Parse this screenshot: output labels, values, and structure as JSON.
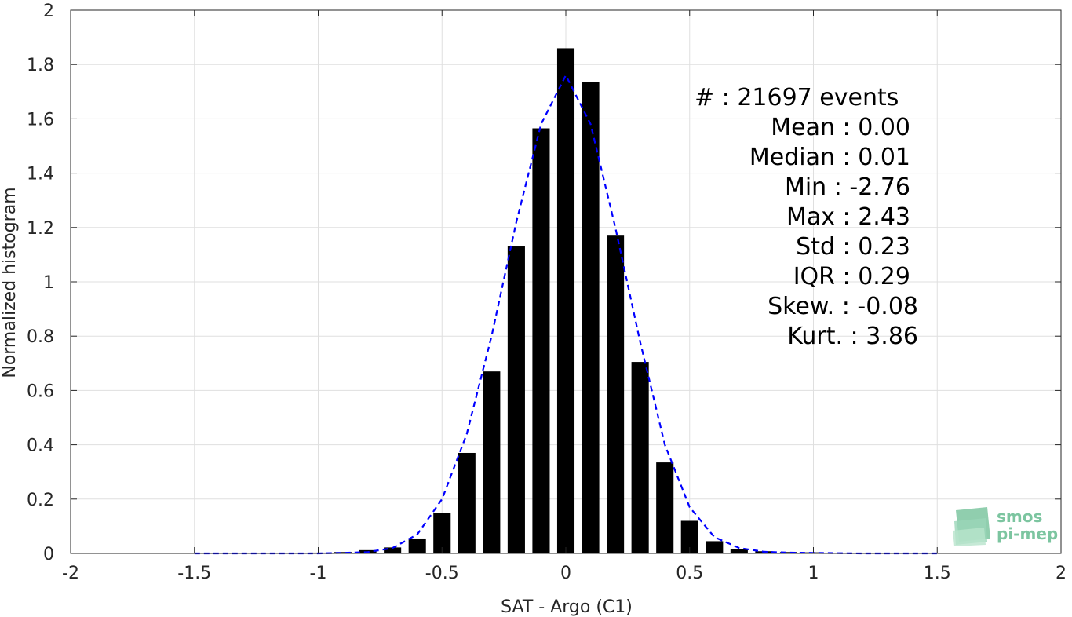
{
  "chart_data": {
    "type": "bar",
    "xlabel": "SAT - Argo (C1)",
    "ylabel": "Normalized histogram",
    "xlim": [
      -2,
      2
    ],
    "ylim": [
      0,
      2
    ],
    "x_ticks": [
      -2,
      -1.5,
      -1,
      -0.5,
      0,
      0.5,
      1,
      1.5,
      2
    ],
    "x_tick_labels": [
      "-2",
      "-1.5",
      "-1",
      "-0.5",
      "0",
      "0.5",
      "1",
      "1.5",
      "2"
    ],
    "y_ticks": [
      0,
      0.2,
      0.4,
      0.6,
      0.8,
      1,
      1.2,
      1.4,
      1.6,
      1.8,
      2
    ],
    "y_tick_labels": [
      "0",
      "0.2",
      "0.4",
      "0.6",
      "0.8",
      "1",
      "1.2",
      "1.4",
      "1.6",
      "1.8",
      "2"
    ],
    "grid": true,
    "bar_color": "#000000",
    "fit_color": "#0000ff",
    "bin_width": 0.1,
    "bars": {
      "x": [
        -1.5,
        -1.4,
        -1.3,
        -1.2,
        -1.1,
        -1.0,
        -0.9,
        -0.8,
        -0.7,
        -0.6,
        -0.5,
        -0.4,
        -0.3,
        -0.2,
        -0.1,
        0.0,
        0.1,
        0.2,
        0.3,
        0.4,
        0.5,
        0.6,
        0.7,
        0.8,
        0.9,
        1.0,
        1.1,
        1.2,
        1.3,
        1.4,
        1.5
      ],
      "values": [
        0.001,
        0.001,
        0.001,
        0.001,
        0.002,
        0.003,
        0.005,
        0.012,
        0.022,
        0.055,
        0.15,
        0.37,
        0.67,
        1.13,
        1.565,
        1.86,
        1.735,
        1.17,
        0.705,
        0.335,
        0.12,
        0.045,
        0.015,
        0.008,
        0.005,
        0.004,
        0.002,
        0.001,
        0.001,
        0.001,
        0.001
      ]
    },
    "fit_curve": {
      "style": "dashed",
      "x": [
        -1.5,
        -1.4,
        -1.3,
        -1.2,
        -1.1,
        -1.0,
        -0.9,
        -0.8,
        -0.7,
        -0.6,
        -0.5,
        -0.4,
        -0.3,
        -0.2,
        -0.1,
        0.0,
        0.1,
        0.2,
        0.3,
        0.4,
        0.5,
        0.6,
        0.7,
        0.8,
        0.9,
        1.0,
        1.1,
        1.2,
        1.3,
        1.4,
        1.5
      ],
      "values": [
        0.0,
        0.0,
        0.0,
        0.0,
        0.0,
        0.0,
        0.002,
        0.005,
        0.02,
        0.07,
        0.2,
        0.44,
        0.8,
        1.22,
        1.58,
        1.76,
        1.58,
        1.2,
        0.78,
        0.4,
        0.17,
        0.06,
        0.02,
        0.006,
        0.003,
        0.002,
        0.001,
        0.0,
        0.0,
        0.0,
        0.0
      ]
    },
    "annotations": [
      "#  : 21697 events",
      "Mean : 0.00",
      "Median : 0.01",
      "Min : -2.76",
      "Max : 2.43",
      "Std : 0.23",
      "IQR : 0.29",
      "Skew. : -0.08",
      "Kurt. : 3.86"
    ]
  },
  "logo": {
    "line1": "smos",
    "line2": "pi-mep",
    "color": "#7cc5a0"
  }
}
